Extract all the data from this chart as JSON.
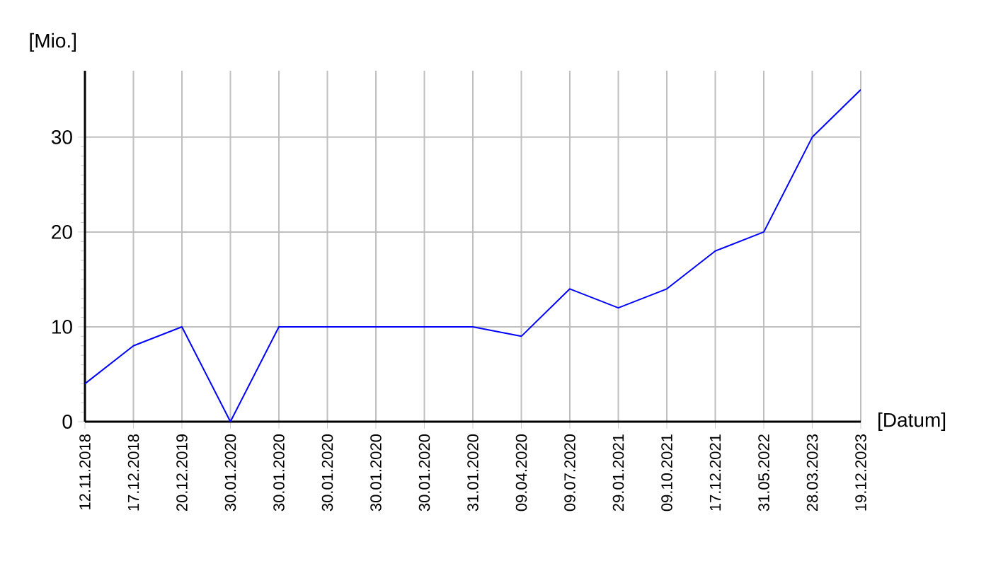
{
  "chart_data": {
    "type": "line",
    "xlabel": "[Datum]",
    "ylabel": "[Mio.]",
    "categories": [
      "12.11.2018",
      "17.12.2018",
      "20.12.2019",
      "30.01.2020",
      "30.01.2020",
      "30.01.2020",
      "30.01.2020",
      "30.01.2020",
      "31.01.2020",
      "09.04.2020",
      "09.07.2020",
      "29.01.2021",
      "09.10.2021",
      "17.12.2021",
      "31.05.2022",
      "28.03.2023",
      "19.12.2023"
    ],
    "series": [
      {
        "color": "#0000ff",
        "values": [
          4,
          8,
          10,
          0,
          10,
          10,
          10,
          10,
          10,
          9,
          14,
          12,
          14,
          18,
          20,
          30,
          35
        ]
      }
    ],
    "ylim": [
      0,
      37
    ],
    "yticks": [
      0,
      10,
      20,
      30
    ],
    "grid": true
  }
}
